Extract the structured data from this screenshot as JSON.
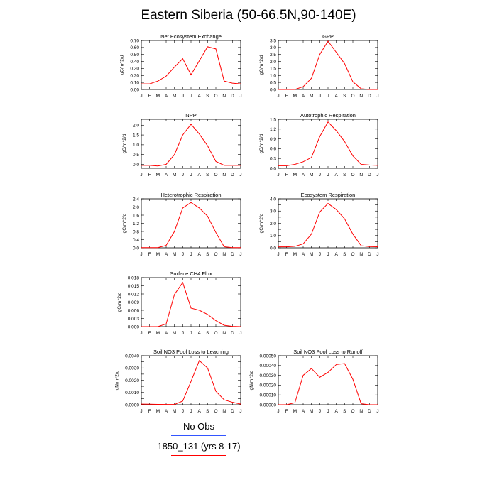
{
  "title": "Eastern Siberia (50-66.5N,90-140E)",
  "colors": {
    "model_line": "#ff0000",
    "obs_line": "#3355ff",
    "axis": "#000000"
  },
  "legend": [
    {
      "label": "No Obs",
      "color": "#3355ff"
    },
    {
      "label": "1850_131 (yrs 8-17)",
      "color": "#ff0000"
    }
  ],
  "chart_data": [
    {
      "type": "line",
      "title": "Net Ecosystem Exchange",
      "ylabel": "gC/m^2/d",
      "xlabel": "",
      "categories": [
        "J",
        "F",
        "M",
        "A",
        "M",
        "J",
        "J",
        "A",
        "S",
        "O",
        "N",
        "D",
        "J"
      ],
      "ylim": [
        0,
        0.7
      ],
      "yticks": [
        0,
        0.1,
        0.2,
        0.3,
        0.4,
        0.5,
        0.6,
        0.7
      ],
      "ytick_labels": [
        "0.00",
        "0.10",
        "0.20",
        "0.30",
        "0.40",
        "0.50",
        "0.60",
        "0.70"
      ],
      "series": [
        {
          "values": [
            0.08,
            0.08,
            0.12,
            0.19,
            0.32,
            0.44,
            0.21,
            0.41,
            0.61,
            0.58,
            0.12,
            0.09,
            0.08
          ]
        }
      ]
    },
    {
      "type": "line",
      "title": "GPP",
      "ylabel": "gC/m^2/d",
      "xlabel": "",
      "categories": [
        "J",
        "F",
        "M",
        "A",
        "M",
        "J",
        "J",
        "A",
        "S",
        "O",
        "N",
        "D",
        "J"
      ],
      "ylim": [
        0,
        3.5
      ],
      "yticks": [
        0,
        0.5,
        1.0,
        1.5,
        2.0,
        2.5,
        3.0,
        3.5
      ],
      "ytick_labels": [
        "0.0",
        "0.5",
        "1.0",
        "1.5",
        "2.0",
        "2.5",
        "3.0",
        "3.5"
      ],
      "series": [
        {
          "values": [
            0.0,
            0.0,
            0.0,
            0.2,
            0.8,
            2.5,
            3.45,
            2.65,
            1.85,
            0.55,
            0.05,
            0.0,
            0.0
          ]
        }
      ]
    },
    {
      "type": "line",
      "title": "NPP",
      "ylabel": "gC/m^2/d",
      "xlabel": "",
      "categories": [
        "J",
        "F",
        "M",
        "A",
        "M",
        "J",
        "J",
        "A",
        "S",
        "O",
        "N",
        "D",
        "J"
      ],
      "ylim": [
        -0.2,
        2.3
      ],
      "yticks": [
        0,
        0.5,
        1.0,
        1.5,
        2.0
      ],
      "ytick_labels": [
        "0.0",
        "0.5",
        "1.0",
        "1.5",
        "2.0"
      ],
      "series": [
        {
          "values": [
            -0.05,
            -0.05,
            -0.08,
            0.0,
            0.5,
            1.5,
            2.05,
            1.55,
            0.95,
            0.15,
            -0.05,
            -0.05,
            -0.05
          ]
        }
      ]
    },
    {
      "type": "line",
      "title": "Autotrophic Respiration",
      "ylabel": "gC/m^2/d",
      "xlabel": "",
      "categories": [
        "J",
        "F",
        "M",
        "A",
        "M",
        "J",
        "J",
        "A",
        "S",
        "O",
        "N",
        "D",
        "J"
      ],
      "ylim": [
        0,
        1.5
      ],
      "yticks": [
        0,
        0.3,
        0.6,
        0.9,
        1.2,
        1.5
      ],
      "ytick_labels": [
        "0.0",
        "0.3",
        "0.6",
        "0.9",
        "1.2",
        "1.5"
      ],
      "series": [
        {
          "values": [
            0.08,
            0.08,
            0.12,
            0.2,
            0.33,
            0.97,
            1.42,
            1.15,
            0.82,
            0.38,
            0.12,
            0.1,
            0.09
          ]
        }
      ]
    },
    {
      "type": "line",
      "title": "Heterotrophic Respiration",
      "ylabel": "gC/m^2/d",
      "xlabel": "",
      "categories": [
        "J",
        "F",
        "M",
        "A",
        "M",
        "J",
        "J",
        "A",
        "S",
        "O",
        "N",
        "D",
        "J"
      ],
      "ylim": [
        0,
        2.4
      ],
      "yticks": [
        0,
        0.4,
        0.8,
        1.2,
        1.6,
        2.0,
        2.4
      ],
      "ytick_labels": [
        "0.0",
        "0.4",
        "0.8",
        "1.2",
        "1.6",
        "2.0",
        "2.4"
      ],
      "series": [
        {
          "values": [
            0.01,
            0.01,
            0.01,
            0.12,
            0.8,
            1.95,
            2.22,
            1.95,
            1.55,
            0.75,
            0.05,
            0.01,
            0.01
          ]
        }
      ]
    },
    {
      "type": "line",
      "title": "Ecosystem Respiration",
      "ylabel": "gC/m^2/d",
      "xlabel": "",
      "categories": [
        "J",
        "F",
        "M",
        "A",
        "M",
        "J",
        "J",
        "A",
        "S",
        "O",
        "N",
        "D",
        "J"
      ],
      "ylim": [
        0,
        4.0
      ],
      "yticks": [
        0,
        0.5,
        1.0,
        1.5,
        2.0,
        2.5,
        3.0,
        3.5,
        4.0
      ],
      "ytick_labels": [
        "0.0",
        "",
        "1.0",
        "",
        "2.0",
        "",
        "3.0",
        "",
        "4.0"
      ],
      "series": [
        {
          "values": [
            0.08,
            0.08,
            0.12,
            0.32,
            1.12,
            2.92,
            3.62,
            3.12,
            2.37,
            1.12,
            0.17,
            0.1,
            0.09
          ]
        }
      ]
    },
    {
      "type": "line",
      "title": "Surface CH4 Flux",
      "ylabel": "gC/m^2/d",
      "xlabel": "",
      "categories": [
        "J",
        "F",
        "M",
        "A",
        "M",
        "J",
        "J",
        "A",
        "S",
        "O",
        "N",
        "D",
        "J"
      ],
      "ylim": [
        0,
        0.018
      ],
      "yticks": [
        0,
        0.003,
        0.006,
        0.009,
        0.012,
        0.015,
        0.018
      ],
      "ytick_labels": [
        "0.000",
        "0.003",
        "0.006",
        "0.009",
        "0.012",
        "0.015",
        "0.018"
      ],
      "series": [
        {
          "values": [
            0.0,
            0.0,
            0.0,
            0.001,
            0.0118,
            0.0162,
            0.0068,
            0.006,
            0.0045,
            0.0022,
            0.0005,
            0.0001,
            0.0
          ]
        }
      ]
    },
    {
      "type": "line",
      "title": "Soil NO3 Pool Loss to Leaching",
      "ylabel": "gN/m^2/d",
      "xlabel": "",
      "categories": [
        "J",
        "F",
        "M",
        "A",
        "M",
        "J",
        "J",
        "A",
        "S",
        "O",
        "N",
        "D",
        "J"
      ],
      "ylim": [
        0,
        0.004
      ],
      "yticks": [
        0,
        0.0005,
        0.001,
        0.0015,
        0.002,
        0.0025,
        0.003,
        0.0035,
        0.004
      ],
      "ytick_labels": [
        "0.0000",
        "",
        "0.0010",
        "",
        "0.0020",
        "",
        "0.0030",
        "",
        "0.0040"
      ],
      "series": [
        {
          "values": [
            5e-05,
            4e-05,
            3e-05,
            2e-05,
            2e-05,
            0.0003,
            0.0019,
            0.0036,
            0.003,
            0.0011,
            0.0004,
            0.0002,
            5e-05
          ]
        }
      ]
    },
    {
      "type": "line",
      "title": "Soil NO3 Pool Loss to Runoff",
      "ylabel": "gN/m^2/d",
      "xlabel": "",
      "categories": [
        "J",
        "F",
        "M",
        "A",
        "M",
        "J",
        "J",
        "A",
        "S",
        "O",
        "N",
        "D",
        "J"
      ],
      "ylim": [
        0,
        0.0005
      ],
      "yticks": [
        0,
        0.0001,
        0.0002,
        0.0003,
        0.0004,
        0.0005
      ],
      "ytick_labels": [
        "0.00000",
        "0.00010",
        "0.00020",
        "0.00030",
        "0.00040",
        "0.00050"
      ],
      "series": [
        {
          "values": [
            0.0,
            0.0,
            2e-05,
            0.0003,
            0.00037,
            0.00028,
            0.00033,
            0.00041,
            0.00042,
            0.00026,
            1e-05,
            0.0,
            0.0
          ]
        }
      ]
    }
  ]
}
